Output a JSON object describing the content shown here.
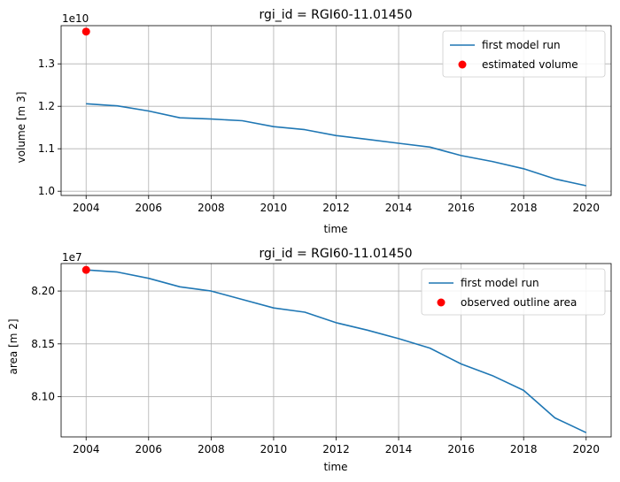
{
  "chart_data": [
    {
      "type": "line",
      "title": "rgi_id = RGI60-11.01450",
      "xlabel": "time",
      "ylabel": "volume [m 3]",
      "offset_label": "1e10",
      "xlim": [
        2003.2,
        2020.8
      ],
      "ylim": [
        0.99,
        1.39
      ],
      "xticks": [
        "2004",
        "2006",
        "2008",
        "2010",
        "2012",
        "2014",
        "2016",
        "2018",
        "2020"
      ],
      "yticks": [
        "1.0",
        "1.1",
        "1.2",
        "1.3"
      ],
      "grid": true,
      "legend_position": "upper right",
      "x": [
        2004,
        2005,
        2006,
        2007,
        2008,
        2009,
        2010,
        2011,
        2012,
        2013,
        2014,
        2015,
        2016,
        2017,
        2018,
        2019,
        2020
      ],
      "series": [
        {
          "name": "first model run",
          "kind": "line",
          "color": "#1f77b4",
          "values": [
            1.206,
            1.201,
            1.189,
            1.173,
            1.17,
            1.166,
            1.152,
            1.145,
            1.131,
            1.122,
            1.113,
            1.104,
            1.084,
            1.07,
            1.053,
            1.029,
            1.013
          ]
        },
        {
          "name": "estimated volume",
          "kind": "point",
          "color": "#ff0000",
          "x": [
            2004
          ],
          "values": [
            1.376
          ]
        }
      ]
    },
    {
      "type": "line",
      "title": "rgi_id = RGI60-11.01450",
      "xlabel": "time",
      "ylabel": "area [m 2]",
      "offset_label": "1e7",
      "xlim": [
        2003.2,
        2020.8
      ],
      "ylim": [
        8.062,
        8.226
      ],
      "xticks": [
        "2004",
        "2006",
        "2008",
        "2010",
        "2012",
        "2014",
        "2016",
        "2018",
        "2020"
      ],
      "yticks": [
        "8.10",
        "8.15",
        "8.20"
      ],
      "grid": true,
      "legend_position": "upper right",
      "x": [
        2004,
        2005,
        2006,
        2007,
        2008,
        2009,
        2010,
        2011,
        2012,
        2013,
        2014,
        2015,
        2016,
        2017,
        2018,
        2019,
        2020
      ],
      "series": [
        {
          "name": "first model run",
          "kind": "line",
          "color": "#1f77b4",
          "values": [
            8.22,
            8.218,
            8.212,
            8.204,
            8.2,
            8.192,
            8.184,
            8.18,
            8.17,
            8.163,
            8.155,
            8.146,
            8.131,
            8.12,
            8.106,
            8.08,
            8.066
          ]
        },
        {
          "name": "observed outline area",
          "kind": "point",
          "color": "#ff0000",
          "x": [
            2004
          ],
          "values": [
            8.22
          ]
        }
      ]
    }
  ]
}
